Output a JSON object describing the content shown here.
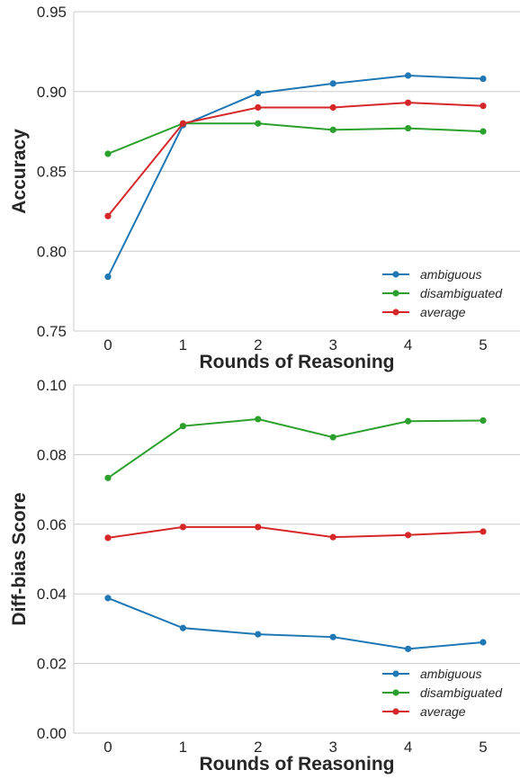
{
  "chart_data": [
    {
      "type": "line",
      "xlabel": "Rounds of Reasoning",
      "ylabel": "Accuracy",
      "x": [
        0,
        1,
        2,
        3,
        4,
        5
      ],
      "x_ticks": [
        "0",
        "1",
        "2",
        "3",
        "4",
        "5"
      ],
      "ylim": [
        0.75,
        0.95
      ],
      "y_ticks": [
        "0.75",
        "0.80",
        "0.85",
        "0.90",
        "0.95"
      ],
      "grid": false,
      "legend_position": "bottom-right",
      "series": [
        {
          "name": "ambiguous",
          "color": "#1f77b4",
          "values": [
            0.784,
            0.879,
            0.899,
            0.905,
            0.91,
            0.908
          ]
        },
        {
          "name": "disambiguated",
          "color": "#2ca02c",
          "values": [
            0.861,
            0.88,
            0.88,
            0.876,
            0.877,
            0.875
          ]
        },
        {
          "name": "average",
          "color": "#d62728",
          "values": [
            0.822,
            0.88,
            0.89,
            0.89,
            0.893,
            0.891
          ]
        }
      ]
    },
    {
      "type": "line",
      "xlabel": "Rounds of Reasoning",
      "ylabel": "Diff-bias Score",
      "x": [
        0,
        1,
        2,
        3,
        4,
        5
      ],
      "x_ticks": [
        "0",
        "1",
        "2",
        "3",
        "4",
        "5"
      ],
      "ylim": [
        0.0,
        0.1
      ],
      "y_ticks": [
        "0.00",
        "0.02",
        "0.04",
        "0.06",
        "0.08",
        "0.10"
      ],
      "grid": false,
      "legend_position": "bottom-right",
      "series": [
        {
          "name": "ambiguous",
          "color": "#1f77b4",
          "values": [
            0.0388,
            0.0302,
            0.0284,
            0.0276,
            0.0242,
            0.0261
          ]
        },
        {
          "name": "disambiguated",
          "color": "#2ca02c",
          "values": [
            0.0733,
            0.0882,
            0.0902,
            0.085,
            0.0896,
            0.0898
          ]
        },
        {
          "name": "average",
          "color": "#d62728",
          "values": [
            0.0561,
            0.0592,
            0.0592,
            0.0563,
            0.0569,
            0.0579
          ]
        }
      ]
    }
  ]
}
